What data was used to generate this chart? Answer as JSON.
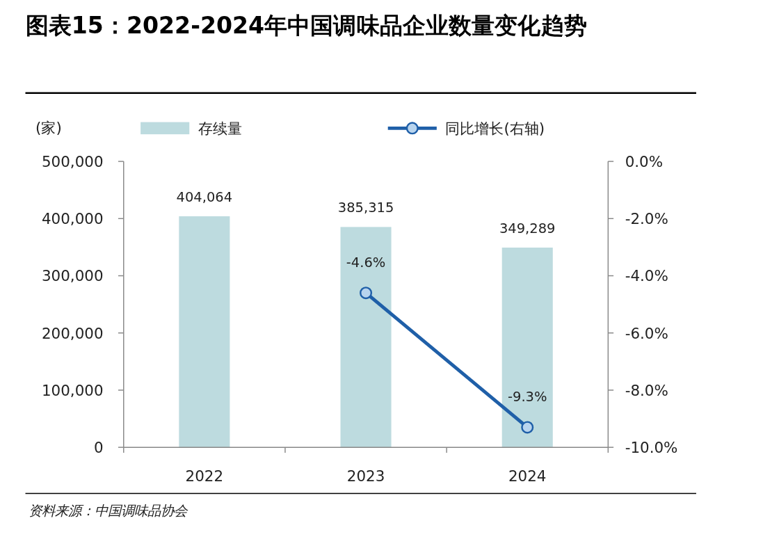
{
  "chart_data": {
    "type": "bar",
    "title": "图表15：2022-2024年中国调味品企业数量变化趋势",
    "ylabel": "(家)",
    "categories": [
      "2022",
      "2023",
      "2024"
    ],
    "series": [
      {
        "name": "存续量",
        "color": "#bddbdf",
        "values": [
          404064,
          385315,
          349289
        ],
        "value_labels": [
          "404,064",
          "385,315",
          "349,289"
        ]
      },
      {
        "name": "同比增长(右轴)",
        "type": "line",
        "axis": "y2",
        "color": "#1f5fa8",
        "values": [
          null,
          -4.6,
          -9.3
        ],
        "value_labels": [
          null,
          "-4.6%",
          "-9.3%"
        ]
      }
    ],
    "ylim": [
      0,
      500000
    ],
    "yticks": [
      {
        "value": 0,
        "label": "0"
      },
      {
        "value": 100000,
        "label": "100,000"
      },
      {
        "value": 200000,
        "label": "200,000"
      },
      {
        "value": 300000,
        "label": "300,000"
      },
      {
        "value": 400000,
        "label": "400,000"
      },
      {
        "value": 500000,
        "label": "500,000"
      }
    ],
    "y2lim": [
      -10,
      0
    ],
    "y2ticks": [
      {
        "value": -10,
        "label": "-10.0%"
      },
      {
        "value": -8,
        "label": "-8.0%"
      },
      {
        "value": -6,
        "label": "-6.0%"
      },
      {
        "value": -4,
        "label": "-4.0%"
      },
      {
        "value": -2,
        "label": "-2.0%"
      },
      {
        "value": 0,
        "label": "0.0%"
      }
    ],
    "legend": "top",
    "marker": "circle",
    "annotations": [
      "资料来源：中国调味品协会"
    ]
  }
}
